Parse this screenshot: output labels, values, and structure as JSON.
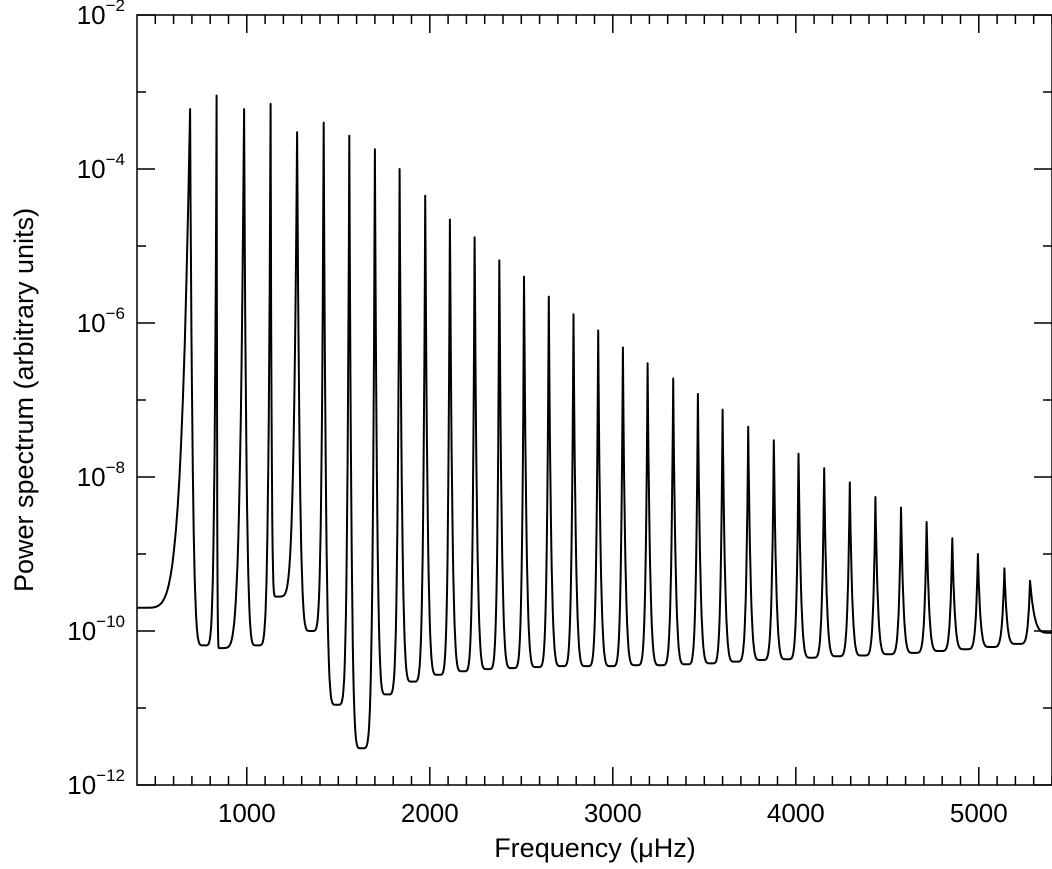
{
  "chart_data": {
    "type": "line",
    "title": "",
    "xlabel": "Frequency (μHz)",
    "ylabel": "Power spectrum (arbitrary units)",
    "xlim": [
      400,
      5400
    ],
    "ylim": [
      1e-12,
      0.01
    ],
    "yscale": "log",
    "grid": false,
    "x_ticks": [
      {
        "value": 1000,
        "label": "1000"
      },
      {
        "value": 2000,
        "label": "2000"
      },
      {
        "value": 3000,
        "label": "3000"
      },
      {
        "value": 4000,
        "label": "4000"
      },
      {
        "value": 5000,
        "label": "5000"
      }
    ],
    "y_ticks": [
      {
        "value": 0.01,
        "base": "10",
        "exp": "−2"
      },
      {
        "value": 0.0001,
        "base": "10",
        "exp": "−4"
      },
      {
        "value": 1e-06,
        "base": "10",
        "exp": "−6"
      },
      {
        "value": 1e-08,
        "base": "10",
        "exp": "−8"
      },
      {
        "value": 1e-10,
        "base": "10",
        "exp": "−10"
      },
      {
        "value": 1e-12,
        "base": "10",
        "exp": "−12"
      }
    ],
    "series": [
      {
        "color": "#000000",
        "peaks": [
          {
            "x": 690,
            "y": 0.0006
          },
          {
            "x": 835,
            "y": 0.0009
          },
          {
            "x": 985,
            "y": 0.0006
          },
          {
            "x": 1130,
            "y": 0.0007
          },
          {
            "x": 1275,
            "y": 0.0003
          },
          {
            "x": 1420,
            "y": 0.0004
          },
          {
            "x": 1560,
            "y": 0.00027
          },
          {
            "x": 1700,
            "y": 0.00018
          },
          {
            "x": 1835,
            "y": 0.0001
          },
          {
            "x": 1975,
            "y": 4.5e-05
          },
          {
            "x": 2110,
            "y": 2.2e-05
          },
          {
            "x": 2245,
            "y": 1.3e-05
          },
          {
            "x": 2380,
            "y": 6.5e-06
          },
          {
            "x": 2515,
            "y": 4e-06
          },
          {
            "x": 2650,
            "y": 2.2e-06
          },
          {
            "x": 2785,
            "y": 1.3e-06
          },
          {
            "x": 2920,
            "y": 8e-07
          },
          {
            "x": 3055,
            "y": 4.8e-07
          },
          {
            "x": 3190,
            "y": 3e-07
          },
          {
            "x": 3330,
            "y": 1.9e-07
          },
          {
            "x": 3465,
            "y": 1.2e-07
          },
          {
            "x": 3600,
            "y": 7.5e-08
          },
          {
            "x": 3740,
            "y": 4.5e-08
          },
          {
            "x": 3880,
            "y": 3e-08
          },
          {
            "x": 4015,
            "y": 2e-08
          },
          {
            "x": 4155,
            "y": 1.3e-08
          },
          {
            "x": 4295,
            "y": 8.5e-09
          },
          {
            "x": 4435,
            "y": 5.5e-09
          },
          {
            "x": 4575,
            "y": 4e-09
          },
          {
            "x": 4715,
            "y": 2.6e-09
          },
          {
            "x": 4855,
            "y": 1.6e-09
          },
          {
            "x": 4995,
            "y": 1e-09
          },
          {
            "x": 5140,
            "y": 6.5e-10
          },
          {
            "x": 5280,
            "y": 4.5e-10
          }
        ],
        "troughs": [
          {
            "x": 400,
            "y": 2e-10
          },
          {
            "x": 765,
            "y": 6.5e-11
          },
          {
            "x": 850,
            "y": 6e-11
          },
          {
            "x": 1055,
            "y": 6.5e-11
          },
          {
            "x": 1160,
            "y": 2.8e-10
          },
          {
            "x": 1350,
            "y": 1e-10
          },
          {
            "x": 1490,
            "y": 1.1e-11
          },
          {
            "x": 1625,
            "y": 3e-12
          },
          {
            "x": 1765,
            "y": 1.5e-11
          },
          {
            "x": 1905,
            "y": 2.2e-11
          },
          {
            "x": 2045,
            "y": 2.7e-11
          },
          {
            "x": 2180,
            "y": 3e-11
          },
          {
            "x": 2315,
            "y": 3.2e-11
          },
          {
            "x": 2450,
            "y": 3.3e-11
          },
          {
            "x": 2585,
            "y": 3.4e-11
          },
          {
            "x": 2720,
            "y": 3.5e-11
          },
          {
            "x": 2855,
            "y": 3.5e-11
          },
          {
            "x": 2990,
            "y": 3.5e-11
          },
          {
            "x": 3125,
            "y": 3.6e-11
          },
          {
            "x": 3260,
            "y": 3.6e-11
          },
          {
            "x": 3400,
            "y": 3.7e-11
          },
          {
            "x": 3535,
            "y": 3.8e-11
          },
          {
            "x": 3670,
            "y": 4e-11
          },
          {
            "x": 3810,
            "y": 4.2e-11
          },
          {
            "x": 3950,
            "y": 4.3e-11
          },
          {
            "x": 4085,
            "y": 4.5e-11
          },
          {
            "x": 4225,
            "y": 4.7e-11
          },
          {
            "x": 4365,
            "y": 4.8e-11
          },
          {
            "x": 4505,
            "y": 5e-11
          },
          {
            "x": 4645,
            "y": 5.2e-11
          },
          {
            "x": 4785,
            "y": 5.5e-11
          },
          {
            "x": 4925,
            "y": 5.8e-11
          },
          {
            "x": 5065,
            "y": 6.2e-11
          },
          {
            "x": 5210,
            "y": 6.8e-11
          },
          {
            "x": 5400,
            "y": 9.5e-11
          }
        ]
      }
    ]
  }
}
